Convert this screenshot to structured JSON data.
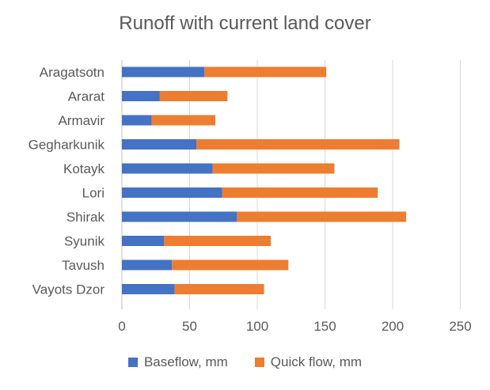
{
  "chart_data": {
    "type": "bar",
    "orientation": "horizontal",
    "stacked": true,
    "title": "Runoff with current land cover",
    "xlabel": "",
    "ylabel": "",
    "categories": [
      "Aragatsotn",
      "Ararat",
      "Armavir",
      "Gegharkunik",
      "Kotayk",
      "Lori",
      "Shirak",
      "Syunik",
      "Tavush",
      "Vayots Dzor"
    ],
    "series": [
      {
        "name": "Baseflow, mm",
        "color": "#4472C4",
        "values": [
          61,
          28,
          22,
          55,
          67,
          74,
          85,
          31,
          37,
          39
        ]
      },
      {
        "name": "Quick flow, mm",
        "color": "#ED7D31",
        "values": [
          90,
          50,
          47,
          150,
          90,
          115,
          125,
          79,
          86,
          66
        ]
      }
    ],
    "xlim": [
      0,
      250
    ],
    "x_ticks": [
      "0",
      "50",
      "100",
      "150",
      "200",
      "250"
    ],
    "grid": "vertical",
    "legend_position": "bottom"
  }
}
